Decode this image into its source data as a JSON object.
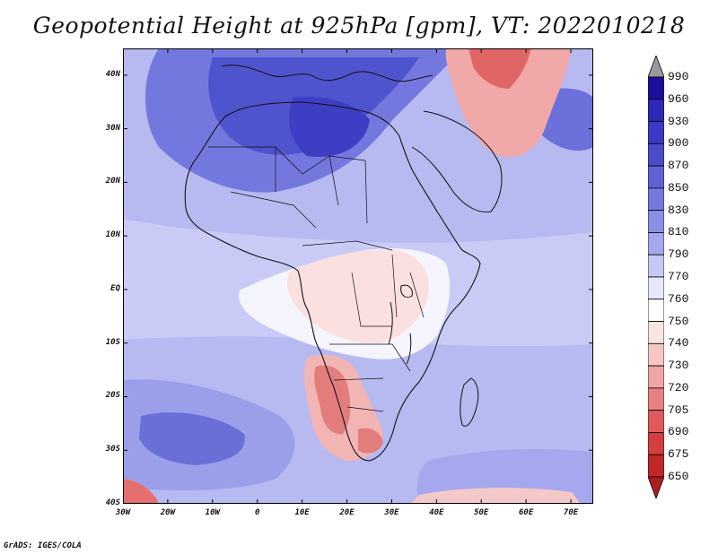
{
  "title": "Geopotential Height at 925hPa [gpm], VT: 2022010218",
  "credit": "GrADS: IGES/COLA",
  "lat_labels": [
    "40N",
    "30N",
    "20N",
    "10N",
    "EQ",
    "10S",
    "20S",
    "30S",
    "40S"
  ],
  "lat_values": [
    40,
    30,
    20,
    10,
    0,
    -10,
    -20,
    -30,
    -40
  ],
  "lon_labels": [
    "30W",
    "20W",
    "10W",
    "0",
    "10E",
    "20E",
    "30E",
    "40E",
    "50E",
    "60E",
    "70E"
  ],
  "lon_values": [
    -30,
    -20,
    -10,
    0,
    10,
    20,
    30,
    40,
    50,
    60,
    70
  ],
  "colorbar": {
    "levels": [
      "990",
      "960",
      "930",
      "900",
      "870",
      "850",
      "830",
      "810",
      "790",
      "770",
      "760",
      "750",
      "740",
      "730",
      "720",
      "705",
      "690",
      "675",
      "650"
    ],
    "colors": [
      "#9a9a9a",
      "#1d0d9c",
      "#2f27b5",
      "#3d39c4",
      "#4a4cca",
      "#5f63d6",
      "#7479df",
      "#8a8fe6",
      "#a4a7ee",
      "#c5c7f5",
      "#e6e7fc",
      "#ffffff",
      "#fbe4e4",
      "#f6c6c6",
      "#f0a4a4",
      "#e88080",
      "#e05c5c",
      "#d33e3e",
      "#c02828",
      "#aa1e1e"
    ]
  }
}
